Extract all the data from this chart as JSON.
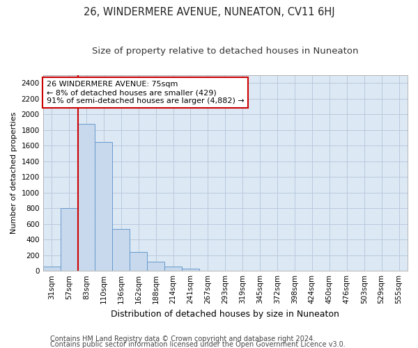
{
  "title": "26, WINDERMERE AVENUE, NUNEATON, CV11 6HJ",
  "subtitle": "Size of property relative to detached houses in Nuneaton",
  "xlabel": "Distribution of detached houses by size in Nuneaton",
  "ylabel": "Number of detached properties",
  "categories": [
    "31sqm",
    "57sqm",
    "83sqm",
    "110sqm",
    "136sqm",
    "162sqm",
    "188sqm",
    "214sqm",
    "241sqm",
    "267sqm",
    "293sqm",
    "319sqm",
    "345sqm",
    "372sqm",
    "398sqm",
    "424sqm",
    "450sqm",
    "476sqm",
    "503sqm",
    "529sqm",
    "555sqm"
  ],
  "values": [
    57,
    800,
    1880,
    1650,
    535,
    240,
    115,
    55,
    30,
    0,
    0,
    0,
    0,
    0,
    0,
    0,
    0,
    0,
    0,
    0,
    0
  ],
  "bar_color": "#c8d9ed",
  "bar_edge_color": "#6699cc",
  "highlight_color": "#cc0000",
  "annotation_line1": "26 WINDERMERE AVENUE: 75sqm",
  "annotation_line2": "← 8% of detached houses are smaller (429)",
  "annotation_line3": "91% of semi-detached houses are larger (4,882) →",
  "annotation_box_color": "#ffffff",
  "annotation_box_edge": "#cc0000",
  "ylim": [
    0,
    2500
  ],
  "yticks": [
    0,
    200,
    400,
    600,
    800,
    1000,
    1200,
    1400,
    1600,
    1800,
    2000,
    2200,
    2400
  ],
  "footer1": "Contains HM Land Registry data © Crown copyright and database right 2024.",
  "footer2": "Contains public sector information licensed under the Open Government Licence v3.0.",
  "background_color": "#ffffff",
  "plot_bg_color": "#dce9f5",
  "grid_color": "#b8c8dc",
  "title_fontsize": 10.5,
  "subtitle_fontsize": 9.5,
  "xlabel_fontsize": 9,
  "ylabel_fontsize": 8,
  "tick_fontsize": 7.5,
  "annotation_fontsize": 8,
  "footer_fontsize": 7
}
